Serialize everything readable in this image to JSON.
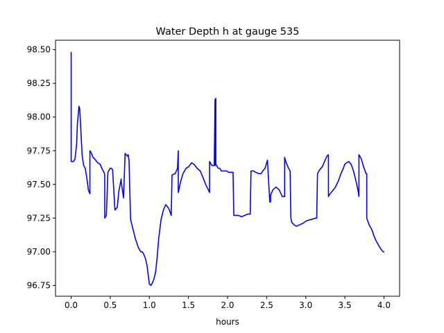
{
  "chart_data": {
    "type": "line",
    "title": "Water Depth h at gauge 535",
    "xlabel": "hours",
    "ylabel": "",
    "xlim": [
      -0.2,
      4.2
    ],
    "ylim": [
      96.67,
      98.57
    ],
    "xticks": [
      0.0,
      0.5,
      1.0,
      1.5,
      2.0,
      2.5,
      3.0,
      3.5,
      4.0
    ],
    "xtick_labels": [
      "0.0",
      "0.5",
      "1.0",
      "1.5",
      "2.0",
      "2.5",
      "3.0",
      "3.5",
      "4.0"
    ],
    "yticks": [
      96.75,
      97.0,
      97.25,
      97.5,
      97.75,
      98.0,
      98.25,
      98.5
    ],
    "ytick_labels": [
      "96.75",
      "97.00",
      "97.25",
      "97.50",
      "97.75",
      "98.00",
      "98.25",
      "98.50"
    ],
    "grid": false,
    "legend": "none",
    "series": [
      {
        "color": "#0000ff",
        "x": [
          0.0,
          0.0,
          0.0,
          0.01,
          0.03,
          0.05,
          0.07,
          0.08,
          0.1,
          0.11,
          0.12,
          0.14,
          0.16,
          0.18,
          0.2,
          0.22,
          0.24,
          0.24,
          0.26,
          0.28,
          0.3,
          0.34,
          0.37,
          0.4,
          0.42,
          0.43,
          0.43,
          0.45,
          0.47,
          0.5,
          0.51,
          0.53,
          0.56,
          0.59,
          0.61,
          0.64,
          0.64,
          0.67,
          0.69,
          0.72,
          0.73,
          0.74,
          0.76,
          0.79,
          0.82,
          0.86,
          0.89,
          0.91,
          0.93,
          0.95,
          0.97,
          1.0,
          1.02,
          1.04,
          1.06,
          1.08,
          1.1,
          1.12,
          1.15,
          1.18,
          1.21,
          1.25,
          1.28,
          1.29,
          1.33,
          1.36,
          1.37,
          1.37,
          1.4,
          1.43,
          1.47,
          1.5,
          1.54,
          1.57,
          1.61,
          1.65,
          1.68,
          1.72,
          1.77,
          1.77,
          1.8,
          1.83,
          1.84,
          1.84,
          1.85,
          1.85,
          1.88,
          1.9,
          1.92,
          1.93,
          1.96,
          1.99,
          2.01,
          2.04,
          2.07,
          2.08,
          2.1,
          2.14,
          2.18,
          2.22,
          2.26,
          2.29,
          2.3,
          2.33,
          2.36,
          2.4,
          2.43,
          2.45,
          2.48,
          2.51,
          2.54,
          2.55,
          2.55,
          2.58,
          2.62,
          2.66,
          2.7,
          2.73,
          2.73,
          2.75,
          2.78,
          2.8,
          2.81,
          2.82,
          2.85,
          2.88,
          2.92,
          2.96,
          3.01,
          3.07,
          3.13,
          3.14,
          3.15,
          3.18,
          3.21,
          3.24,
          3.27,
          3.29,
          3.29,
          3.31,
          3.34,
          3.38,
          3.42,
          3.45,
          3.48,
          3.5,
          3.52,
          3.55,
          3.58,
          3.61,
          3.64,
          3.67,
          3.68,
          3.68,
          3.71,
          3.74,
          3.77,
          3.78,
          3.78,
          3.81,
          3.82,
          3.84,
          3.86,
          3.87,
          3.9,
          3.93,
          3.96,
          3.99,
          4.0
        ],
        "y": [
          98.48,
          98.48,
          97.67,
          97.67,
          97.67,
          97.69,
          97.8,
          97.95,
          98.08,
          98.06,
          97.95,
          97.72,
          97.64,
          97.62,
          97.55,
          97.46,
          97.43,
          97.75,
          97.73,
          97.7,
          97.69,
          97.66,
          97.65,
          97.61,
          97.59,
          97.57,
          97.25,
          97.27,
          97.59,
          97.62,
          97.62,
          97.61,
          97.31,
          97.33,
          97.45,
          97.54,
          97.52,
          97.4,
          97.73,
          97.71,
          97.72,
          97.68,
          97.24,
          97.17,
          97.1,
          97.03,
          97.0,
          97.0,
          96.98,
          96.95,
          96.9,
          96.76,
          96.75,
          96.77,
          96.8,
          96.85,
          96.96,
          97.1,
          97.24,
          97.31,
          97.35,
          97.32,
          97.27,
          97.57,
          97.58,
          97.62,
          97.75,
          97.44,
          97.52,
          97.58,
          97.62,
          97.63,
          97.66,
          97.65,
          97.62,
          97.6,
          97.56,
          97.5,
          97.44,
          97.67,
          97.64,
          97.64,
          98.13,
          97.64,
          98.14,
          97.65,
          97.62,
          97.62,
          97.6,
          97.6,
          97.6,
          97.6,
          97.59,
          97.59,
          97.59,
          97.27,
          97.27,
          97.27,
          97.26,
          97.27,
          97.28,
          97.28,
          97.6,
          97.6,
          97.59,
          97.58,
          97.58,
          97.6,
          97.62,
          97.68,
          97.37,
          97.37,
          97.42,
          97.46,
          97.48,
          97.46,
          97.41,
          97.41,
          97.7,
          97.66,
          97.62,
          97.6,
          97.25,
          97.22,
          97.2,
          97.19,
          97.2,
          97.21,
          97.23,
          97.24,
          97.25,
          97.25,
          97.58,
          97.61,
          97.63,
          97.67,
          97.71,
          97.72,
          97.41,
          97.43,
          97.45,
          97.48,
          97.53,
          97.58,
          97.62,
          97.65,
          97.66,
          97.67,
          97.65,
          97.6,
          97.53,
          97.45,
          97.41,
          97.72,
          97.69,
          97.63,
          97.58,
          97.58,
          97.25,
          97.2,
          97.19,
          97.17,
          97.14,
          97.12,
          97.08,
          97.05,
          97.02,
          97.0,
          97.0
        ]
      }
    ]
  }
}
